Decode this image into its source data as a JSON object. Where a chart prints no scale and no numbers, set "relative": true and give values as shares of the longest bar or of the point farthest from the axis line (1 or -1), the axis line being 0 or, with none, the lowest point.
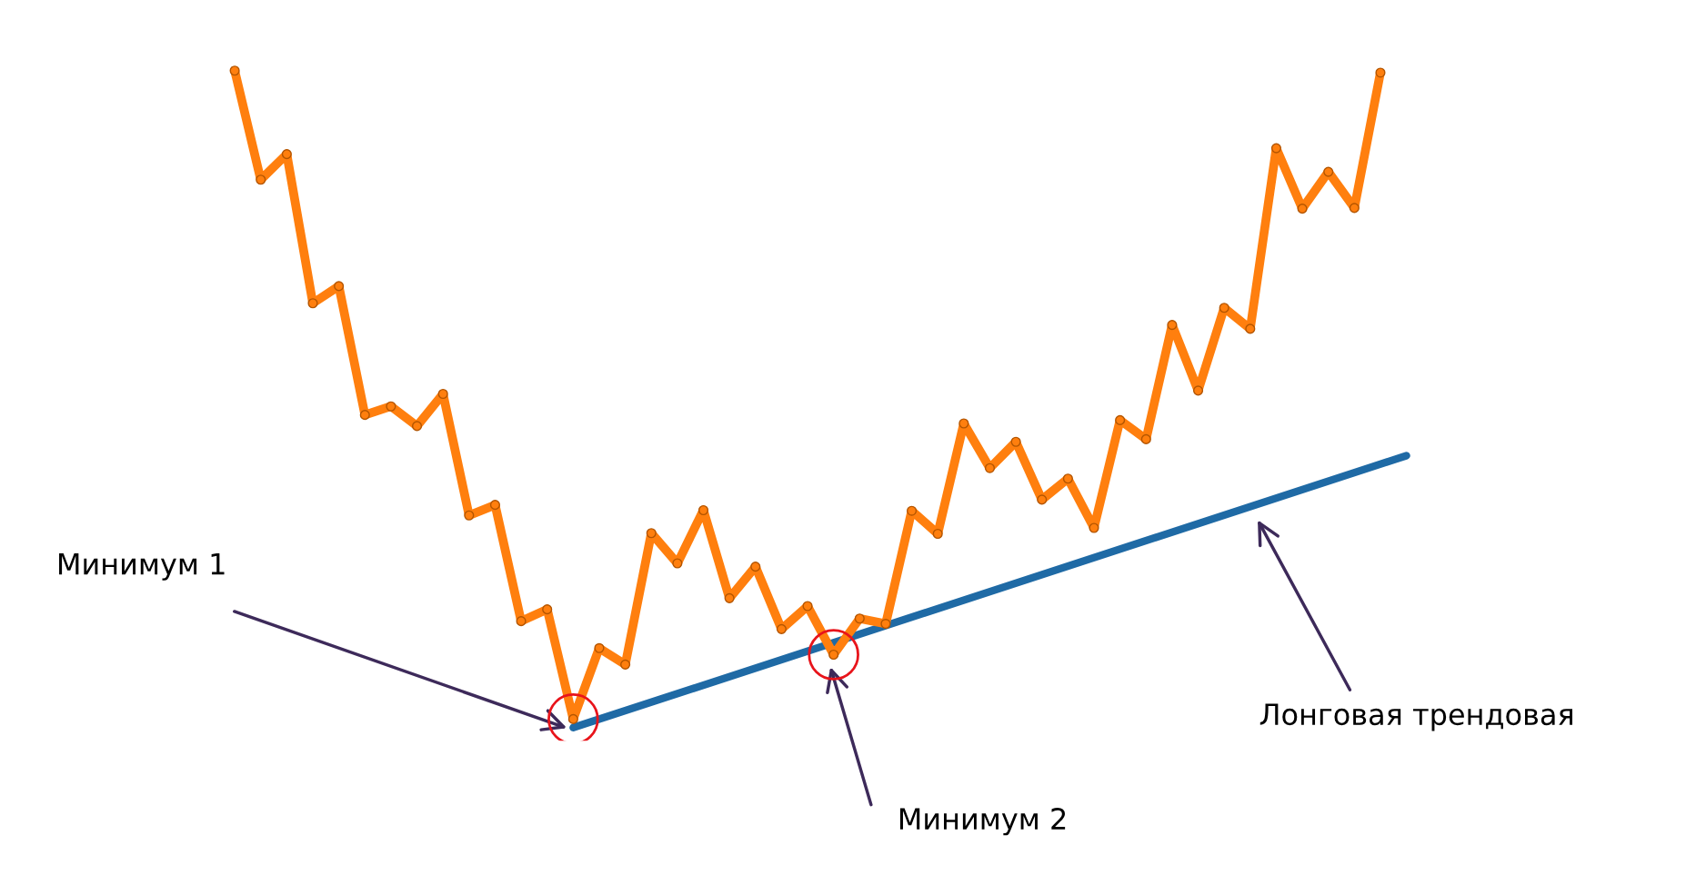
{
  "chart_data": {
    "type": "line",
    "relative": true,
    "tick_labels": false,
    "legend": false,
    "marker": "circle",
    "line_style": "solid",
    "categories": [
      null,
      null,
      null,
      null,
      null,
      null,
      null,
      null,
      null,
      null,
      null,
      null,
      null,
      null,
      null,
      null,
      null,
      null,
      null,
      null,
      null,
      null,
      null,
      null,
      null,
      null,
      null,
      null,
      null,
      null,
      null,
      null,
      null,
      null,
      null,
      null,
      null,
      null,
      null,
      null,
      null,
      null,
      null,
      null,
      null,
      null
    ],
    "series": [
      {
        "color": "#ff7f0e",
        "values": [
          1.0,
          0.834,
          0.873,
          0.646,
          0.672,
          0.476,
          0.489,
          0.459,
          0.508,
          0.323,
          0.339,
          0.162,
          0.18,
          0.013,
          0.121,
          0.096,
          0.296,
          0.25,
          0.331,
          0.197,
          0.245,
          0.15,
          0.185,
          0.111,
          0.166,
          0.158,
          0.33,
          0.295,
          0.463,
          0.395,
          0.435,
          0.347,
          0.379,
          0.304,
          0.468,
          0.439,
          0.613,
          0.513,
          0.639,
          0.607,
          0.882,
          0.79,
          0.846,
          0.791,
          0.997,
          null
        ]
      },
      {
        "color": "#1f6aa5",
        "type": "line",
        "marker": "none",
        "values": [
          null,
          null,
          null,
          null,
          null,
          null,
          null,
          null,
          null,
          null,
          null,
          null,
          null,
          0.0,
          null,
          null,
          null,
          null,
          null,
          null,
          null,
          null,
          null,
          null,
          null,
          null,
          null,
          null,
          null,
          null,
          null,
          null,
          null,
          null,
          null,
          null,
          null,
          null,
          null,
          null,
          null,
          null,
          null,
          null,
          null,
          0.414
        ]
      }
    ],
    "annotations": [
      "Минимум 1",
      "Минимум 2",
      "Лонговая трендовая"
    ]
  }
}
